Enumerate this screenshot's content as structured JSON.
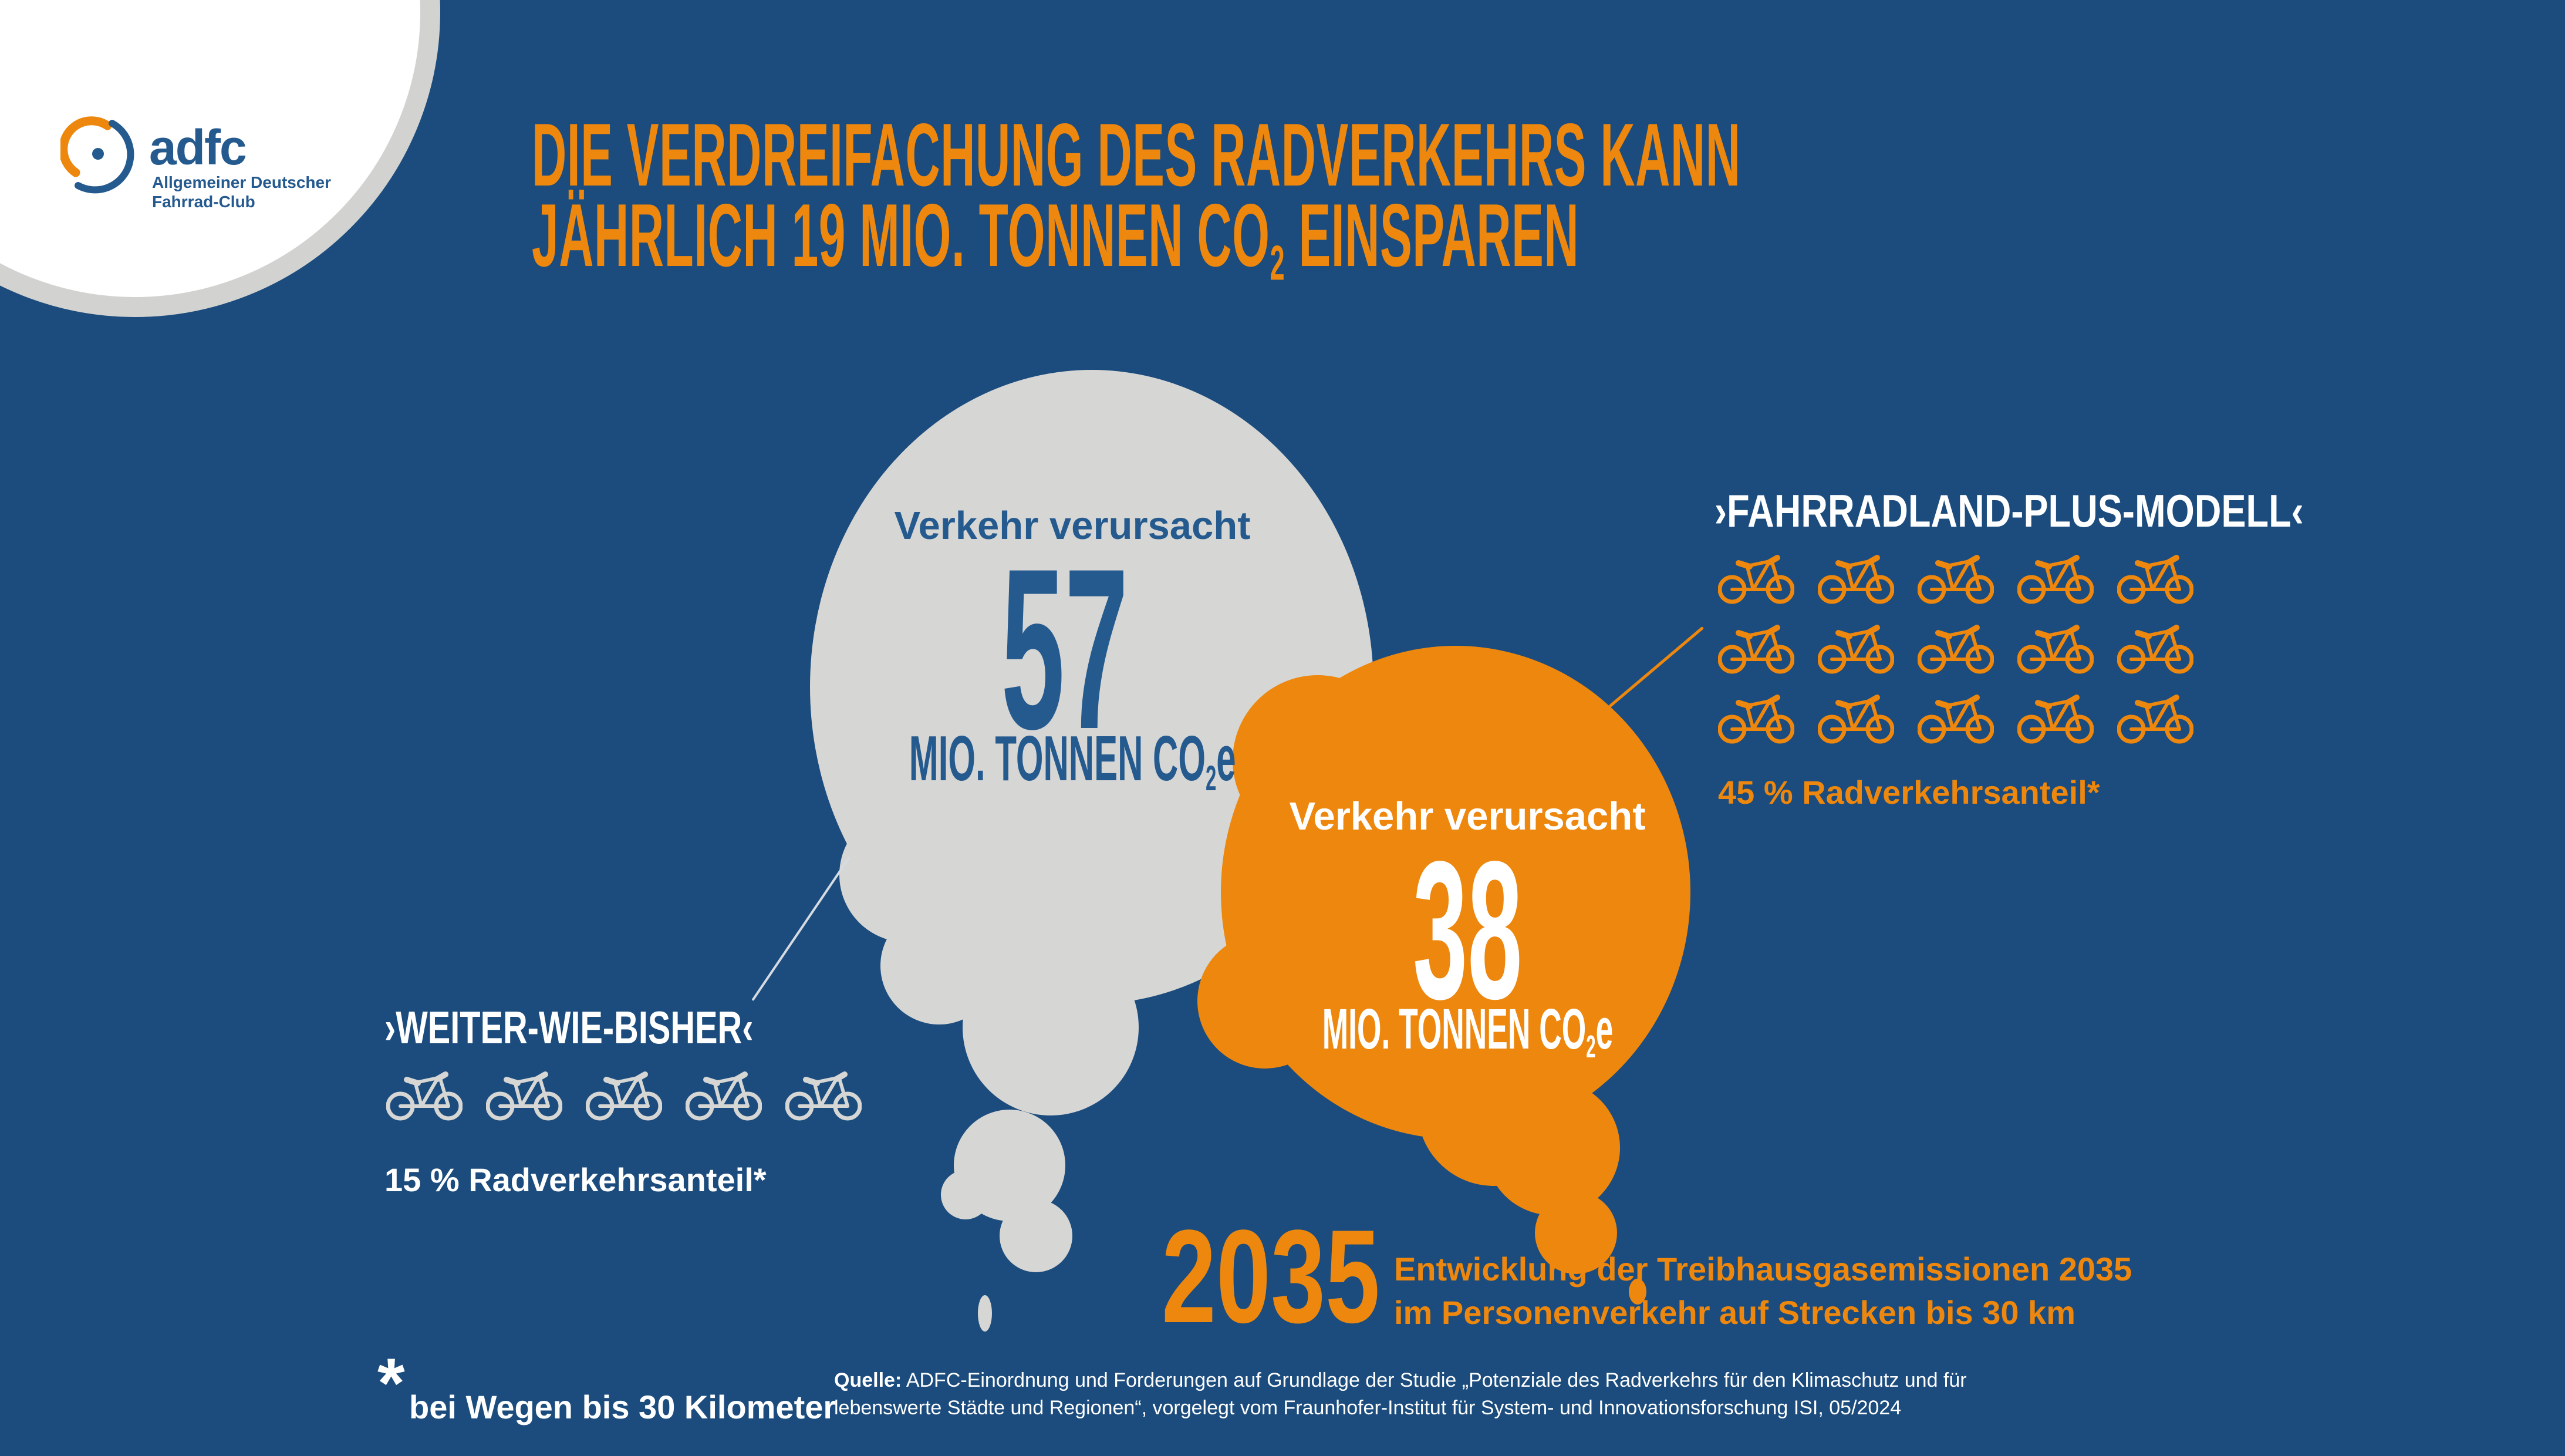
{
  "colors": {
    "background": "#1B4C7D",
    "orange": "#EE870D",
    "cloud_gray": "#D6D6D4",
    "text_blue": "#255A8F",
    "white": "#FFFFFF"
  },
  "logo": {
    "brand": "adfc",
    "subline1": "Allgemeiner Deutscher",
    "subline2": "Fahrrad-Club"
  },
  "title": {
    "line1": "DIE VERDREIFACHUNG DES RADVERKEHRS KANN",
    "line2_pre": "JÄHRLICH 19 MIO. TONNEN CO",
    "line2_sub": "2",
    "line2_post": " EINSPAREN"
  },
  "gray_cloud": {
    "intro": "Verkehr verursacht",
    "value": "57",
    "unit_pre": "MIO. TONNEN CO",
    "unit_sub": "2",
    "unit_post": "e"
  },
  "orange_cloud": {
    "intro": "Verkehr verursacht",
    "value": "38",
    "unit_pre": "MIO. TONNEN CO",
    "unit_sub": "2",
    "unit_post": "e"
  },
  "scenario_right": {
    "label": "›FAHRRADLAND-PLUS-MODELL‹",
    "share": "45 % Radverkehrsanteil*",
    "bike_count": 15,
    "bikes_per_row": 5
  },
  "scenario_left": {
    "label": "›WEITER-WIE-BISHER‹",
    "share": "15 % Radverkehrsanteil*",
    "bike_count": 5,
    "bikes_per_row": 5
  },
  "year": {
    "value": "2035",
    "caption_line1": "Entwicklung der Treibhausgasemissionen 2035",
    "caption_line2": "im Personenverkehr auf Strecken bis 30 km"
  },
  "footnote": {
    "mark": "*",
    "text": "bei Wegen bis 30 Kilometer"
  },
  "source": {
    "label": "Quelle:",
    "line1": "ADFC-Einordnung und Forderungen auf Grundlage der Studie „Potenziale des Radverkehrs für den Klimaschutz und für",
    "line2": "lebenswerte Städte und Regionen“, vorgelegt vom Fraunhofer-Institut für System- und Innovationsforschung ISI, 05/2024"
  }
}
